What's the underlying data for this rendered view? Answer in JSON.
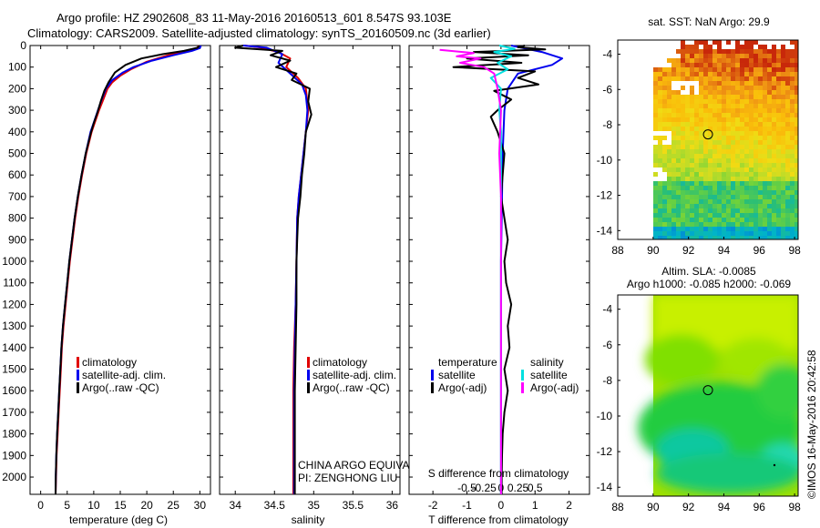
{
  "header": {
    "line1": "Argo profile: HZ 2902608_83 11-May-2016 20160513_601 8.547S 93.103E",
    "line2": "Climatology: CARS2009. Satellite-adjusted climatology: synTS_20160509.nc (3d earlier)"
  },
  "credit": "©IMOS 16-May-2016 20:42:58",
  "colors": {
    "climatology": "#e00000",
    "satellite": "#0000ee",
    "argo": "#000000",
    "cyan": "#00e0e0",
    "magenta": "#ff00ff"
  },
  "chart_data": [
    {
      "type": "line",
      "name": "temperature",
      "xlabel": "temperature (deg C)",
      "xlim": [
        -2,
        32
      ],
      "xticks": [
        0,
        5,
        10,
        15,
        20,
        25,
        30
      ],
      "ylim": [
        2080,
        0
      ],
      "yticks": [
        0,
        100,
        200,
        300,
        400,
        500,
        600,
        700,
        800,
        900,
        1000,
        1100,
        1200,
        1300,
        1400,
        1500,
        1600,
        1700,
        1800,
        1900,
        2000
      ],
      "legend": [
        "climatology",
        "satellite-adj. clim.",
        "Argo(..raw -QC)"
      ],
      "series": [
        {
          "name": "climatology",
          "color": "#e00000",
          "points": [
            [
              29.8,
              0
            ],
            [
              29.4,
              15
            ],
            [
              27.5,
              25
            ],
            [
              24,
              45
            ],
            [
              20,
              75
            ],
            [
              17,
              110
            ],
            [
              15,
              140
            ],
            [
              13.5,
              170
            ],
            [
              12.6,
              200
            ],
            [
              11.8,
              250
            ],
            [
              11,
              300
            ],
            [
              10.3,
              350
            ],
            [
              9.6,
              400
            ],
            [
              8.6,
              500
            ],
            [
              7.8,
              600
            ],
            [
              7.1,
              700
            ],
            [
              6.5,
              800
            ],
            [
              6,
              900
            ],
            [
              5.5,
              1000
            ],
            [
              5.1,
              1100
            ],
            [
              4.7,
              1200
            ],
            [
              4.3,
              1300
            ],
            [
              4,
              1400
            ],
            [
              3.8,
              1500
            ],
            [
              3.6,
              1600
            ],
            [
              3.4,
              1700
            ],
            [
              3.2,
              1800
            ],
            [
              3,
              1900
            ],
            [
              2.9,
              2000
            ],
            [
              2.8,
              2080
            ]
          ]
        },
        {
          "name": "satellite",
          "color": "#0000ee",
          "points": [
            [
              30.2,
              0
            ],
            [
              30,
              12
            ],
            [
              28.5,
              25
            ],
            [
              25,
              45
            ],
            [
              21,
              70
            ],
            [
              17.5,
              100
            ],
            [
              15.5,
              125
            ],
            [
              13.5,
              160
            ],
            [
              12.3,
              200
            ],
            [
              11.5,
              250
            ],
            [
              10.8,
              300
            ],
            [
              10.1,
              350
            ],
            [
              9.4,
              400
            ],
            [
              8.5,
              500
            ],
            [
              7.7,
              600
            ],
            [
              7,
              700
            ],
            [
              6.4,
              800
            ],
            [
              5.9,
              900
            ],
            [
              5.4,
              1000
            ],
            [
              5,
              1100
            ],
            [
              4.6,
              1200
            ],
            [
              4.2,
              1300
            ],
            [
              3.9,
              1400
            ],
            [
              3.7,
              1500
            ],
            [
              3.5,
              1600
            ],
            [
              3.3,
              1700
            ],
            [
              3.1,
              1800
            ],
            [
              2.95,
              1900
            ],
            [
              2.85,
              2000
            ],
            [
              2.8,
              2080
            ]
          ]
        },
        {
          "name": "argo",
          "color": "#000000",
          "points": [
            [
              29.9,
              0
            ],
            [
              29.6,
              10
            ],
            [
              27,
              25
            ],
            [
              23,
              40
            ],
            [
              19,
              60
            ],
            [
              16,
              90
            ],
            [
              14,
              125
            ],
            [
              12.8,
              170
            ],
            [
              12,
              210
            ],
            [
              11.3,
              260
            ],
            [
              10.7,
              310
            ],
            [
              10,
              360
            ],
            [
              9.4,
              410
            ],
            [
              8.5,
              500
            ],
            [
              7.7,
              600
            ],
            [
              7,
              700
            ],
            [
              6.4,
              800
            ],
            [
              5.9,
              900
            ],
            [
              5.4,
              1000
            ],
            [
              5,
              1100
            ],
            [
              4.6,
              1200
            ],
            [
              4.2,
              1300
            ],
            [
              3.9,
              1400
            ],
            [
              3.7,
              1500
            ],
            [
              3.5,
              1600
            ],
            [
              3.3,
              1700
            ],
            [
              3.1,
              1800
            ],
            [
              2.95,
              1900
            ],
            [
              2.85,
              2000
            ],
            [
              2.8,
              2080
            ]
          ]
        }
      ]
    },
    {
      "type": "line",
      "name": "salinity",
      "xlabel": "salinity",
      "xlim": [
        33.8,
        36.1
      ],
      "xticks": [
        34,
        34.5,
        35,
        35.5,
        36
      ],
      "ylim": [
        2080,
        0
      ],
      "legend": [
        "climatology",
        "satellite-adj. clim.",
        "Argo(..raw -QC)"
      ],
      "annotations": [
        "CHINA ARGO EQUIVALENT",
        "PI: ZENGHONG LIU"
      ],
      "series": [
        {
          "name": "climatology",
          "color": "#e00000",
          "points": [
            [
              34.12,
              0
            ],
            [
              34.3,
              8
            ],
            [
              34.55,
              30
            ],
            [
              34.7,
              60
            ],
            [
              34.65,
              100
            ],
            [
              34.8,
              150
            ],
            [
              34.9,
              200
            ],
            [
              34.93,
              300
            ],
            [
              34.9,
              400
            ],
            [
              34.87,
              500
            ],
            [
              34.84,
              600
            ],
            [
              34.81,
              700
            ],
            [
              34.79,
              800
            ],
            [
              34.78,
              1000
            ],
            [
              34.77,
              1200
            ],
            [
              34.75,
              1400
            ],
            [
              34.74,
              1600
            ],
            [
              34.74,
              1800
            ],
            [
              34.74,
              2000
            ],
            [
              34.74,
              2080
            ]
          ]
        },
        {
          "name": "satellite",
          "color": "#0000ee",
          "points": [
            [
              34.1,
              0
            ],
            [
              34.4,
              10
            ],
            [
              34.6,
              40
            ],
            [
              34.55,
              80
            ],
            [
              34.7,
              130
            ],
            [
              34.85,
              180
            ],
            [
              34.9,
              230
            ],
            [
              34.92,
              300
            ],
            [
              34.9,
              400
            ],
            [
              34.87,
              500
            ],
            [
              34.84,
              600
            ],
            [
              34.81,
              700
            ],
            [
              34.79,
              800
            ],
            [
              34.78,
              1000
            ],
            [
              34.77,
              1200
            ],
            [
              34.76,
              1400
            ],
            [
              34.75,
              1600
            ],
            [
              34.75,
              1800
            ],
            [
              34.75,
              2000
            ],
            [
              34.75,
              2080
            ]
          ]
        },
        {
          "name": "argo",
          "color": "#000000",
          "points": [
            [
              34.1,
              0
            ],
            [
              34.0,
              10
            ],
            [
              34.6,
              25
            ],
            [
              34.45,
              45
            ],
            [
              34.7,
              70
            ],
            [
              34.52,
              100
            ],
            [
              34.78,
              130
            ],
            [
              34.72,
              160
            ],
            [
              34.95,
              200
            ],
            [
              34.93,
              260
            ],
            [
              34.97,
              320
            ],
            [
              34.9,
              400
            ],
            [
              34.88,
              500
            ],
            [
              34.85,
              600
            ],
            [
              34.83,
              700
            ],
            [
              34.8,
              800
            ],
            [
              34.79,
              900
            ],
            [
              34.78,
              1000
            ],
            [
              34.78,
              1200
            ],
            [
              34.77,
              1400
            ],
            [
              34.76,
              1600
            ],
            [
              34.76,
              1800
            ],
            [
              34.76,
              2000
            ],
            [
              34.76,
              2080
            ]
          ]
        }
      ]
    },
    {
      "type": "line",
      "name": "difference",
      "xlabel": "T difference from climatology",
      "top_label": "S difference from climatology",
      "xlim": [
        -2.7,
        2.6
      ],
      "xticks": [
        -2,
        -1,
        0,
        1,
        2
      ],
      "xticklabels": [
        "-2",
        "-1",
        "0",
        "1",
        "2"
      ],
      "s_ticks": [
        -0.5,
        -0.25,
        0,
        0.25,
        0.5
      ],
      "s_ticklabels": [
        "-0.5",
        "-0.25",
        "0",
        "0.25",
        "0.5"
      ],
      "ylim": [
        2080,
        0
      ],
      "legend_left_title": "temperature",
      "legend_left": [
        "satellite",
        "Argo(-adj)"
      ],
      "legend_right_title": "salinity",
      "legend_right": [
        "satellite",
        "Argo(-adj)"
      ],
      "series": [
        {
          "name": "T satellite",
          "color": "#0000ee",
          "points": [
            [
              0.3,
              0
            ],
            [
              0.6,
              10
            ],
            [
              1.2,
              30
            ],
            [
              1.8,
              60
            ],
            [
              1.5,
              90
            ],
            [
              0.5,
              130
            ],
            [
              0.2,
              200
            ],
            [
              0.1,
              300
            ],
            [
              0.05,
              500
            ],
            [
              0,
              1000
            ],
            [
              0,
              1500
            ],
            [
              0,
              2080
            ]
          ]
        },
        {
          "name": "T Argo(-adj)",
          "color": "#000000",
          "points": [
            [
              0.7,
              0
            ],
            [
              0.5,
              8
            ],
            [
              1.3,
              18
            ],
            [
              -0.8,
              30
            ],
            [
              0.8,
              45
            ],
            [
              -1,
              60
            ],
            [
              0.6,
              80
            ],
            [
              -1.4,
              100
            ],
            [
              1,
              120
            ],
            [
              0.5,
              150
            ],
            [
              1.1,
              180
            ],
            [
              -0.2,
              210
            ],
            [
              0.3,
              250
            ],
            [
              -0.1,
              300
            ],
            [
              -0.3,
              330
            ],
            [
              -0.1,
              400
            ],
            [
              0.1,
              500
            ],
            [
              0.05,
              600
            ],
            [
              0,
              700
            ],
            [
              0.1,
              800
            ],
            [
              0.2,
              900
            ],
            [
              0.1,
              1000
            ],
            [
              0.15,
              1100
            ],
            [
              0.3,
              1200
            ],
            [
              0.2,
              1300
            ],
            [
              0.25,
              1400
            ],
            [
              0.1,
              1500
            ],
            [
              0.2,
              1600
            ],
            [
              0.1,
              1700
            ],
            [
              0.05,
              1800
            ],
            [
              0.03,
              1900
            ],
            [
              0.02,
              2000
            ],
            [
              0.02,
              2080
            ]
          ]
        },
        {
          "name": "S satellite",
          "color": "#00e0e0",
          "points": [
            [
              -0.05,
              0
            ],
            [
              0.4,
              15
            ],
            [
              -0.2,
              30
            ],
            [
              0.3,
              50
            ],
            [
              -0.1,
              80
            ],
            [
              0.2,
              110
            ],
            [
              -0.3,
              150
            ],
            [
              0,
              200
            ],
            [
              -0.05,
              300
            ],
            [
              0,
              400
            ],
            [
              0,
              600
            ],
            [
              0,
              1000
            ],
            [
              0,
              1500
            ],
            [
              0,
              2080
            ]
          ]
        },
        {
          "name": "S Argo(-adj)",
          "color": "#ff00ff",
          "points": [
            [
              -1.8,
              20
            ],
            [
              -0.8,
              35
            ],
            [
              -1.3,
              50
            ],
            [
              -0.6,
              60
            ],
            [
              -1.2,
              80
            ],
            [
              -0.5,
              100
            ],
            [
              -0.2,
              130
            ],
            [
              -0.1,
              200
            ],
            [
              0,
              300
            ],
            [
              -0.05,
              500
            ],
            [
              0,
              700
            ],
            [
              0,
              1000
            ],
            [
              0,
              1500
            ],
            [
              0,
              2080
            ]
          ]
        }
      ]
    },
    {
      "type": "heatmap",
      "name": "sst-map",
      "title": "sat. SST: NaN Argo: 29.9",
      "xlim": [
        88,
        98.2
      ],
      "ylim": [
        -14.5,
        -3.2
      ],
      "xticks": [
        88,
        90,
        92,
        94,
        96,
        98
      ],
      "yticks": [
        -4,
        -6,
        -8,
        -10,
        -12,
        -14
      ],
      "argo_position": [
        93.103,
        -8.547
      ]
    },
    {
      "type": "heatmap",
      "name": "sla-map",
      "title_line1": "Altim. SLA: -0.0085",
      "title_line2": "Argo h1000: -0.085 h2000: -0.069",
      "xlim": [
        88,
        98.2
      ],
      "ylim": [
        -14.5,
        -3.2
      ],
      "xticks": [
        88,
        90,
        92,
        94,
        96,
        98
      ],
      "yticks": [
        -4,
        -6,
        -8,
        -10,
        -12,
        -14
      ],
      "argo_position": [
        93.103,
        -8.547
      ]
    }
  ]
}
